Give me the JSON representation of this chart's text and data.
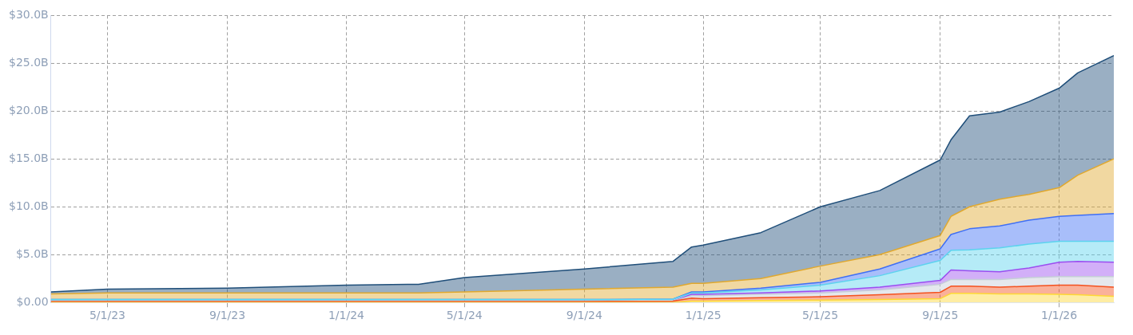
{
  "chart_data": {
    "type": "area",
    "stacked": true,
    "grid": true,
    "x": [
      "2023-03-04",
      "2023-05-01",
      "2023-09-01",
      "2024-01-01",
      "2024-03-15",
      "2024-05-01",
      "2024-09-01",
      "2024-12-01",
      "2024-12-20",
      "2025-01-01",
      "2025-03-01",
      "2025-05-01",
      "2025-07-01",
      "2025-09-01",
      "2025-09-12",
      "2025-10-01",
      "2025-11-01",
      "2025-12-01",
      "2026-01-01",
      "2026-01-20",
      "2026-02-26"
    ],
    "series": [
      {
        "color": "#fdd835",
        "values": [
          0,
          0,
          0,
          0,
          0,
          0,
          0,
          0,
          0.15,
          0.15,
          0.2,
          0.25,
          0.3,
          0.4,
          0.95,
          0.95,
          0.9,
          0.9,
          0.86,
          0.8,
          0.65
        ]
      },
      {
        "color": "#f4511e",
        "values": [
          0.1,
          0.1,
          0.1,
          0.1,
          0.1,
          0.1,
          0.1,
          0.15,
          0.3,
          0.25,
          0.3,
          0.35,
          0.5,
          0.66,
          0.75,
          0.75,
          0.7,
          0.8,
          0.94,
          1.0,
          0.95
        ]
      },
      {
        "color": "#c5cdd8",
        "values": [
          0,
          0,
          0,
          0,
          0,
          0,
          0,
          0,
          0.25,
          0.3,
          0.35,
          0.4,
          0.5,
          0.84,
          0.7,
          0.7,
          0.8,
          0.9,
          0.9,
          0.9,
          1.1
        ]
      },
      {
        "color": "#9b4df0",
        "values": [
          0,
          0,
          0,
          0,
          0,
          0,
          0,
          0,
          0.15,
          0.15,
          0.15,
          0.2,
          0.3,
          0.4,
          1.0,
          0.9,
          0.8,
          1.0,
          1.5,
          1.6,
          1.5
        ]
      },
      {
        "color": "#5cd3ee",
        "values": [
          0.2,
          0.2,
          0.2,
          0.2,
          0.2,
          0.2,
          0.2,
          0.2,
          0.15,
          0.15,
          0.3,
          0.6,
          1.2,
          2.1,
          2.05,
          2.2,
          2.5,
          2.5,
          2.2,
          2.1,
          2.2
        ]
      },
      {
        "color": "#3f6ff5",
        "values": [
          0,
          0,
          0,
          0,
          0,
          0,
          0,
          0,
          0.1,
          0.1,
          0.2,
          0.3,
          0.7,
          1.2,
          1.65,
          2.2,
          2.3,
          2.5,
          2.6,
          2.7,
          2.9
        ]
      },
      {
        "color": "#e0a82e",
        "values": [
          0.6,
          0.7,
          0.7,
          0.7,
          0.7,
          0.8,
          1.1,
          1.25,
          0.9,
          0.9,
          1.0,
          1.7,
          1.5,
          1.4,
          1.9,
          2.3,
          2.8,
          2.7,
          3.0,
          4.2,
          5.7
        ]
      },
      {
        "color": "#1f4e79",
        "values": [
          0.2,
          0.4,
          0.5,
          0.8,
          0.9,
          1.5,
          2.1,
          2.7,
          3.8,
          4.0,
          4.8,
          6.2,
          6.7,
          7.9,
          8.0,
          9.5,
          9.1,
          9.7,
          10.4,
          10.7,
          10.8
        ]
      }
    ],
    "xlim": [
      "2023-03-04",
      "2026-02-26"
    ],
    "xticks": [
      {
        "value": "2023-05-01",
        "label": "5/1/23"
      },
      {
        "value": "2023-09-01",
        "label": "9/1/23"
      },
      {
        "value": "2024-01-01",
        "label": "1/1/24"
      },
      {
        "value": "2024-05-01",
        "label": "5/1/24"
      },
      {
        "value": "2024-09-01",
        "label": "9/1/24"
      },
      {
        "value": "2025-01-01",
        "label": "1/1/25"
      },
      {
        "value": "2025-05-01",
        "label": "5/1/25"
      },
      {
        "value": "2025-09-01",
        "label": "9/1/25"
      },
      {
        "value": "2026-01-01",
        "label": "1/1/26"
      }
    ],
    "ylim": [
      0,
      30
    ],
    "yticks": [
      {
        "value": 0,
        "label": "$0.00"
      },
      {
        "value": 5,
        "label": "$5.0B"
      },
      {
        "value": 10,
        "label": "$10.0B"
      },
      {
        "value": 15,
        "label": "$15.0B"
      },
      {
        "value": 20,
        "label": "$20.0B"
      },
      {
        "value": 25,
        "label": "$25.0B"
      },
      {
        "value": 30,
        "label": "$30.0B"
      }
    ]
  }
}
